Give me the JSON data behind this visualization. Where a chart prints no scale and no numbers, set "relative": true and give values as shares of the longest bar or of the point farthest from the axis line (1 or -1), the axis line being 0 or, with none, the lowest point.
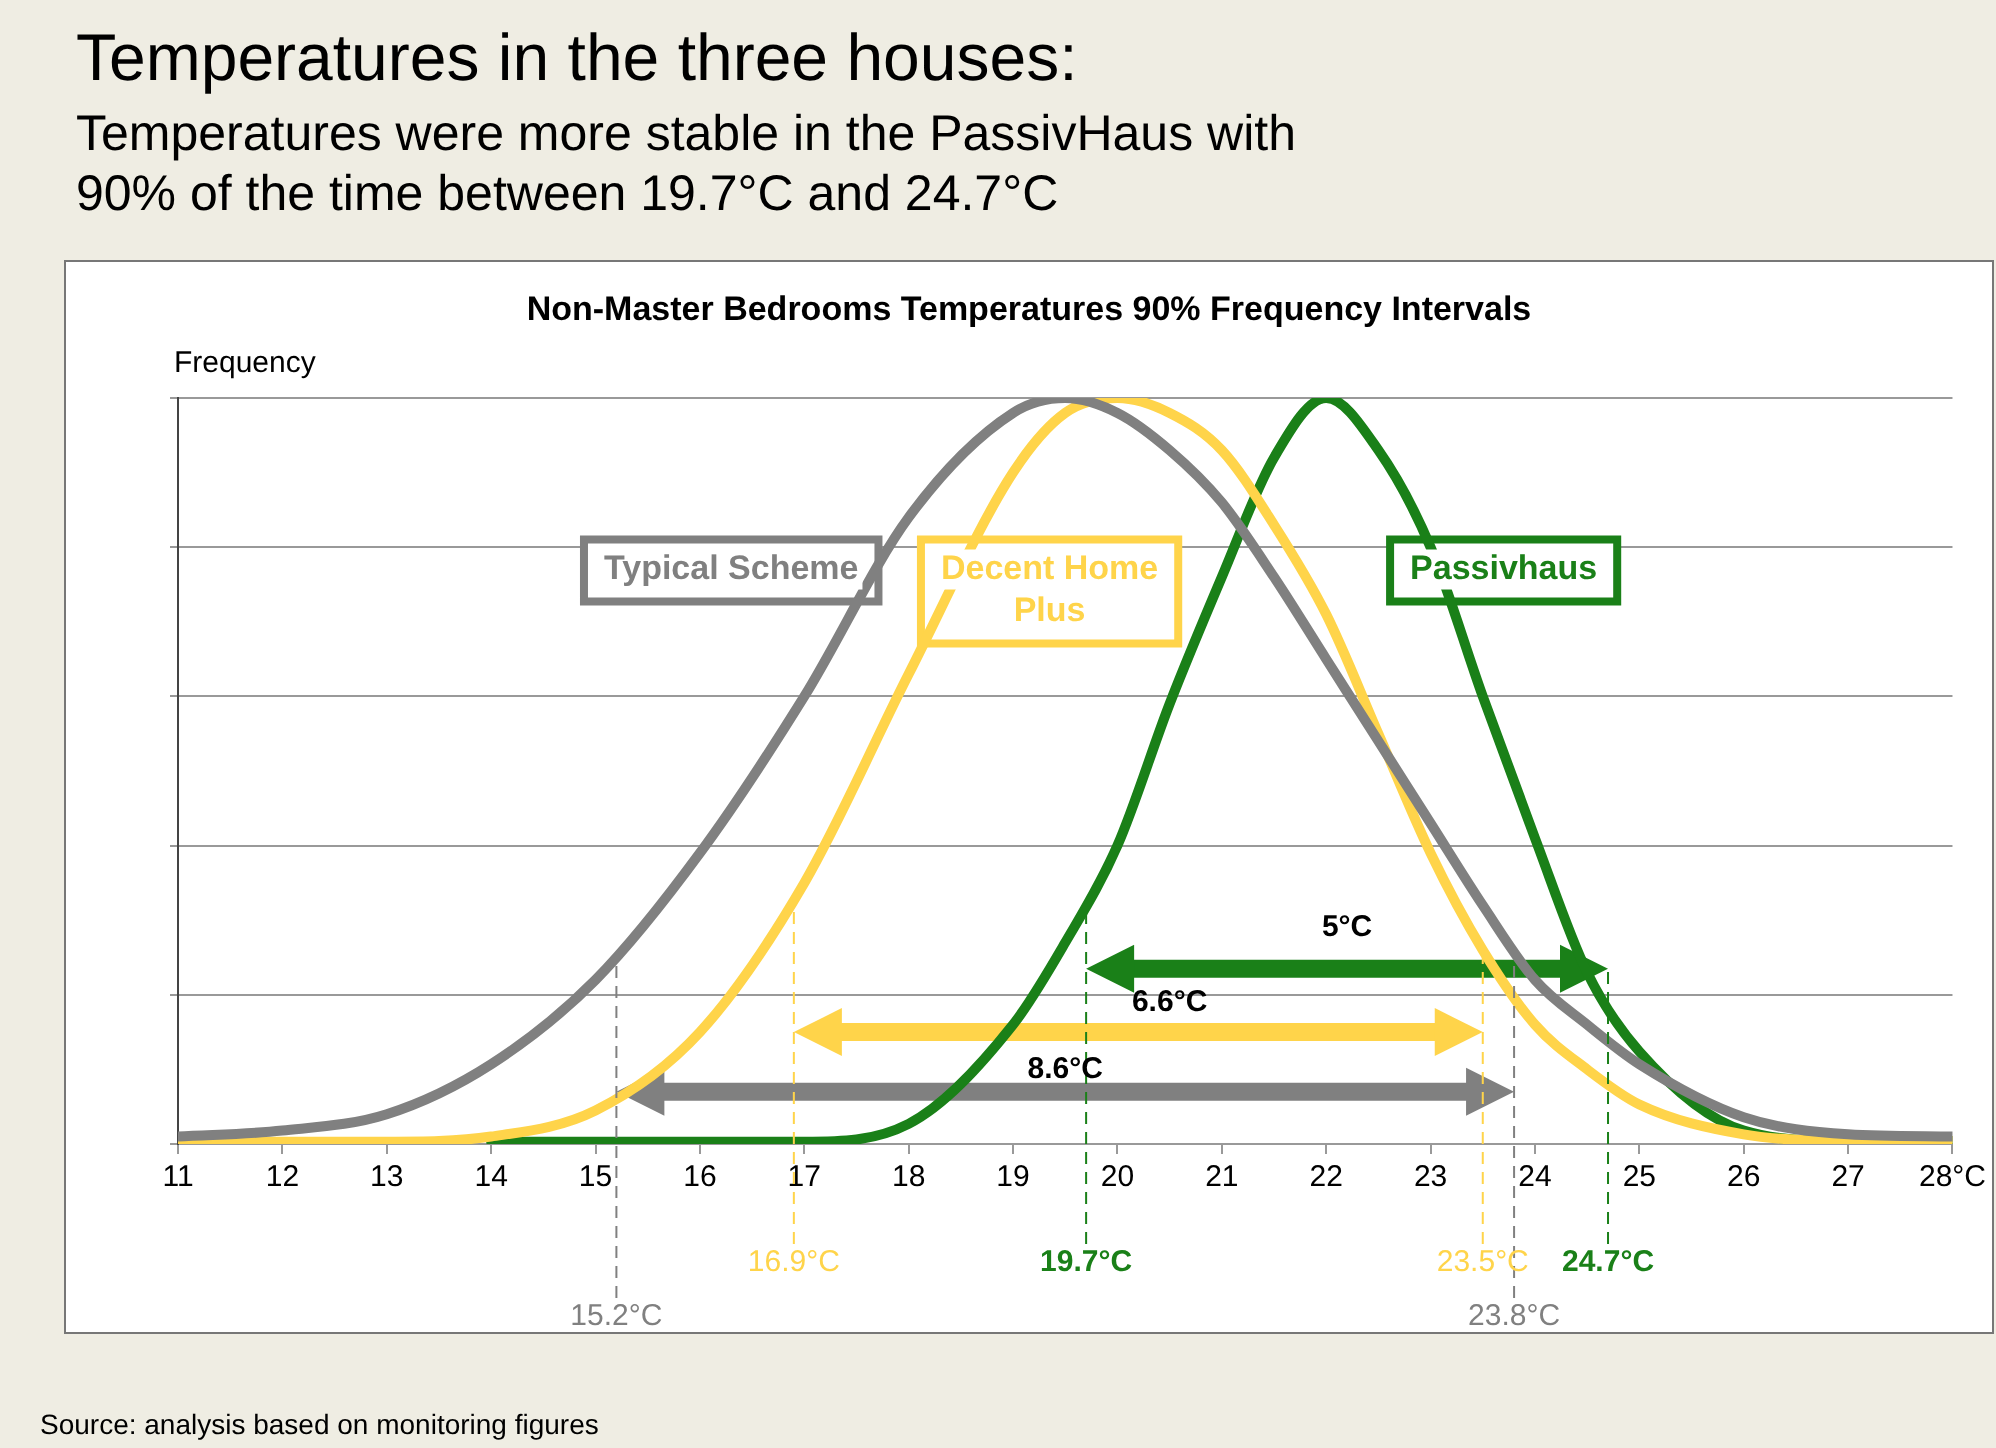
{
  "chart_data": {
    "type": "line",
    "title": "Temperatures in the three houses:",
    "subtitle": "Temperatures were more stable in the PassivHaus with 90% of the time between 19.7°C and 24.7°C",
    "ylabel": "Frequency",
    "relative": true,
    "legend": false,
    "grid": "y",
    "tick_labels": "x",
    "marker": "none",
    "line_style": "solid",
    "x": [
      11,
      12,
      13,
      14,
      15,
      16,
      17,
      18,
      19,
      19.5,
      20,
      20.5,
      21,
      21.5,
      22,
      22.5,
      23,
      23.5,
      24,
      24.5,
      25,
      26,
      27,
      28
    ],
    "xlim": [
      11,
      28
    ],
    "xticks": [
      11,
      12,
      13,
      14,
      15,
      16,
      17,
      18,
      19,
      20,
      21,
      22,
      23,
      24,
      25,
      26,
      27,
      {
        "value": 28,
        "label": "28°C"
      }
    ],
    "series": [
      {
        "name": "Typical Scheme",
        "color": "#808080",
        "values": [
          0.01,
          0.018,
          0.04,
          0.107,
          0.22,
          0.39,
          0.6,
          0.84,
          0.98,
          1,
          0.98,
          0.93,
          0.86,
          0.76,
          0.65,
          0.54,
          0.43,
          0.32,
          0.22,
          0.16,
          0.107,
          0.036,
          0.013,
          0.01
        ]
      },
      {
        "name": "Decent Home Plus",
        "color": "#ffd44a",
        "values": [
          0.003,
          0.003,
          0.003,
          0.01,
          0.045,
          0.15,
          0.35,
          0.63,
          0.9,
          0.98,
          1,
          0.98,
          0.93,
          0.83,
          0.71,
          0.55,
          0.39,
          0.26,
          0.16,
          0.1,
          0.053,
          0.013,
          0.004,
          0.004
        ]
      },
      {
        "name": "Passivhaus",
        "color": "#1a8018",
        "values": [
          null,
          null,
          null,
          0.003,
          0.003,
          0.003,
          0.003,
          0.027,
          0.16,
          0.27,
          0.4,
          0.59,
          0.76,
          0.92,
          1,
          0.93,
          0.8,
          0.6,
          0.41,
          0.23,
          0.124,
          0.018,
          0.004,
          0.004
        ]
      }
    ],
    "ref_lines": [
      {
        "axis": "x",
        "value": 15.2,
        "label": "15.2°C",
        "color": "#808080",
        "line_style": "dashed"
      },
      {
        "axis": "x",
        "value": 23.8,
        "label": "23.8°C",
        "color": "#808080",
        "line_style": "dashed"
      },
      {
        "axis": "x",
        "value": 16.9,
        "label": "16.9°C",
        "color": "#ffd44a",
        "line_style": "dashed"
      },
      {
        "axis": "x",
        "value": 23.5,
        "label": "23.5°C",
        "color": "#ffd44a",
        "line_style": "dashed"
      },
      {
        "axis": "x",
        "value": 19.7,
        "label": "19.7°C",
        "color": "#1a8018",
        "line_style": "dashed"
      },
      {
        "axis": "x",
        "value": 24.7,
        "label": "24.7°C",
        "color": "#1a8018",
        "line_style": "dashed"
      }
    ],
    "annotations": [
      "Non-Master Bedrooms Temperatures 90% Frequency Intervals",
      "8.6°C",
      "6.6°C",
      "5°C",
      "Source: analysis based on monitoring figures"
    ]
  }
}
